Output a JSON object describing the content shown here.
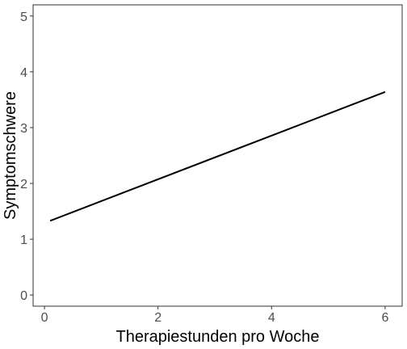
{
  "chart_data": {
    "type": "line",
    "title": "",
    "xlabel": "Therapiestunden pro Woche",
    "ylabel": "Symptomschwere",
    "xlim": [
      -0.2,
      6.3
    ],
    "ylim": [
      -0.2,
      5.2
    ],
    "xticks": [
      0,
      2,
      4,
      6
    ],
    "yticks": [
      0,
      1,
      2,
      3,
      4,
      5
    ],
    "grid": false,
    "legend": "none",
    "series": [
      {
        "x": [
          0.1,
          6.0
        ],
        "y": [
          1.33,
          3.64
        ]
      }
    ],
    "colors": {
      "line": "#000000",
      "panel_border": "#333333",
      "tick_text": "#4d4d4d"
    }
  }
}
